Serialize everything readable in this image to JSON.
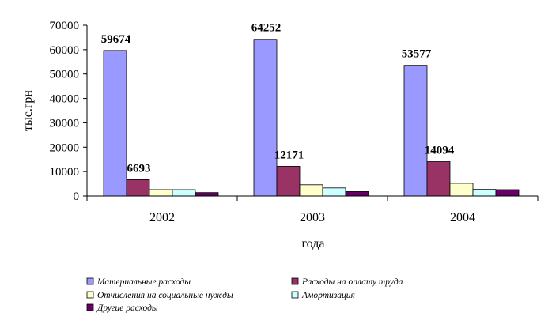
{
  "chart_data": {
    "type": "bar",
    "title": "",
    "xlabel": "года",
    "ylabel": "тыс.грн",
    "ylim": [
      0,
      70000
    ],
    "yticks": [
      0,
      10000,
      20000,
      30000,
      40000,
      50000,
      60000,
      70000
    ],
    "grid": false,
    "legend_position": "bottom",
    "categories": [
      "2002",
      "2003",
      "2004"
    ],
    "series": [
      {
        "name": "Материальные расходы",
        "color": "#9999ff",
        "values": [
          59674,
          64252,
          53577
        ]
      },
      {
        "name": "Расходы на оплату труда",
        "color": "#993366",
        "values": [
          6693,
          12171,
          14094
        ]
      },
      {
        "name": "Отчисления на социальные нужды",
        "color": "#ffffcc",
        "values": [
          2600,
          4600,
          5200
        ]
      },
      {
        "name": "Амортизация",
        "color": "#ccffff",
        "values": [
          2600,
          3300,
          2700
        ]
      },
      {
        "name": "Другие расходы",
        "color": "#660066",
        "values": [
          1400,
          1800,
          2600
        ]
      }
    ],
    "data_labels": [
      {
        "series": 0,
        "category": 0,
        "text": "59674"
      },
      {
        "series": 0,
        "category": 1,
        "text": "64252"
      },
      {
        "series": 0,
        "category": 2,
        "text": "53577"
      },
      {
        "series": 1,
        "category": 0,
        "text": "6693"
      },
      {
        "series": 1,
        "category": 1,
        "text": "12171"
      },
      {
        "series": 1,
        "category": 2,
        "text": "14094"
      }
    ]
  }
}
